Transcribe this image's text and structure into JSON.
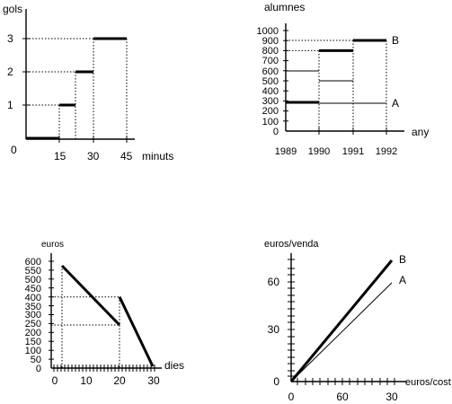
{
  "chart_data": [
    {
      "type": "line",
      "ylabel": "gols",
      "xlabel": "minuts",
      "origin_label": "0",
      "xticks": [
        "15",
        "30",
        "45"
      ],
      "yticks": [
        "1",
        "2",
        "3"
      ],
      "xlim": [
        0,
        45
      ],
      "ylim": [
        0,
        3.3
      ],
      "series": [
        {
          "x": [
            0,
            15,
            15,
            22,
            22,
            30,
            30,
            45
          ],
          "y": [
            0,
            0,
            1,
            1,
            2,
            2,
            3,
            3
          ]
        }
      ]
    },
    {
      "type": "line",
      "ylabel": "alumnes",
      "xlabel": "any",
      "xticks": [
        "1989",
        "1990",
        "1991",
        "1992"
      ],
      "yticks": [
        "1000",
        "900",
        "800",
        "700",
        "600",
        "500",
        "400",
        "300",
        "200",
        "100",
        "0"
      ],
      "ylim": [
        0,
        1000
      ],
      "series": [
        {
          "name": "A",
          "x": [
            1989,
            1990,
            1991,
            1992
          ],
          "y": [
            300,
            300,
            300,
            300
          ]
        },
        {
          "name": "B",
          "x": [
            1989,
            1990,
            1990,
            1991,
            1991,
            1992,
            1992
          ],
          "y": [
            300,
            300,
            800,
            800,
            920,
            920,
            0
          ]
        }
      ]
    },
    {
      "type": "line",
      "ylabel": "euros",
      "xlabel": "dies",
      "xticks": [
        "0",
        "10",
        "20",
        "30"
      ],
      "yticks": [
        "600",
        "550",
        "500",
        "450",
        "400",
        "350",
        "300",
        "250",
        "200",
        "150",
        "100",
        "50",
        "0"
      ],
      "xlim": [
        0,
        30
      ],
      "ylim": [
        0,
        600
      ],
      "series": [
        {
          "x": [
            3,
            20
          ],
          "y": [
            580,
            305
          ]
        },
        {
          "x": [
            20,
            29
          ],
          "y": [
            450,
            10
          ]
        }
      ]
    },
    {
      "type": "line",
      "ylabel": "euros/venda",
      "xlabel": "euros/cost",
      "xticks": [
        "0",
        "60",
        "30"
      ],
      "yticks": [
        "60",
        "30",
        "0"
      ],
      "series": [
        {
          "name": "B",
          "x": [
            0,
            30
          ],
          "y": [
            0,
            72
          ]
        },
        {
          "name": "A",
          "x": [
            0,
            30
          ],
          "y": [
            0,
            59
          ]
        }
      ]
    }
  ]
}
